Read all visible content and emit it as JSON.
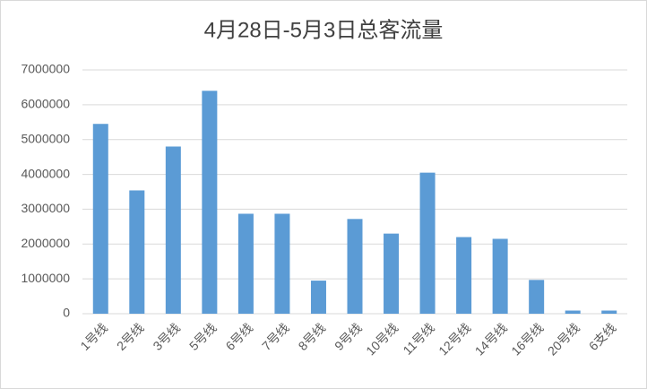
{
  "chart_data": {
    "type": "bar",
    "title": "4月28日-5月3日总客流量",
    "categories": [
      "1号线",
      "2号线",
      "3号线",
      "5号线",
      "6号线",
      "7号线",
      "8号线",
      "9号线",
      "10号线",
      "11号线",
      "12号线",
      "14号线",
      "16号线",
      "20号线",
      "6支线"
    ],
    "values": [
      5450000,
      3540000,
      4800000,
      6400000,
      2870000,
      2870000,
      950000,
      2720000,
      2300000,
      4050000,
      2200000,
      2150000,
      970000,
      90000,
      90000
    ],
    "color": "#5b9bd5",
    "ylim": [
      0,
      7000000
    ],
    "yticks": [
      0,
      1000000,
      2000000,
      3000000,
      4000000,
      5000000,
      6000000,
      7000000
    ],
    "grid": true
  }
}
